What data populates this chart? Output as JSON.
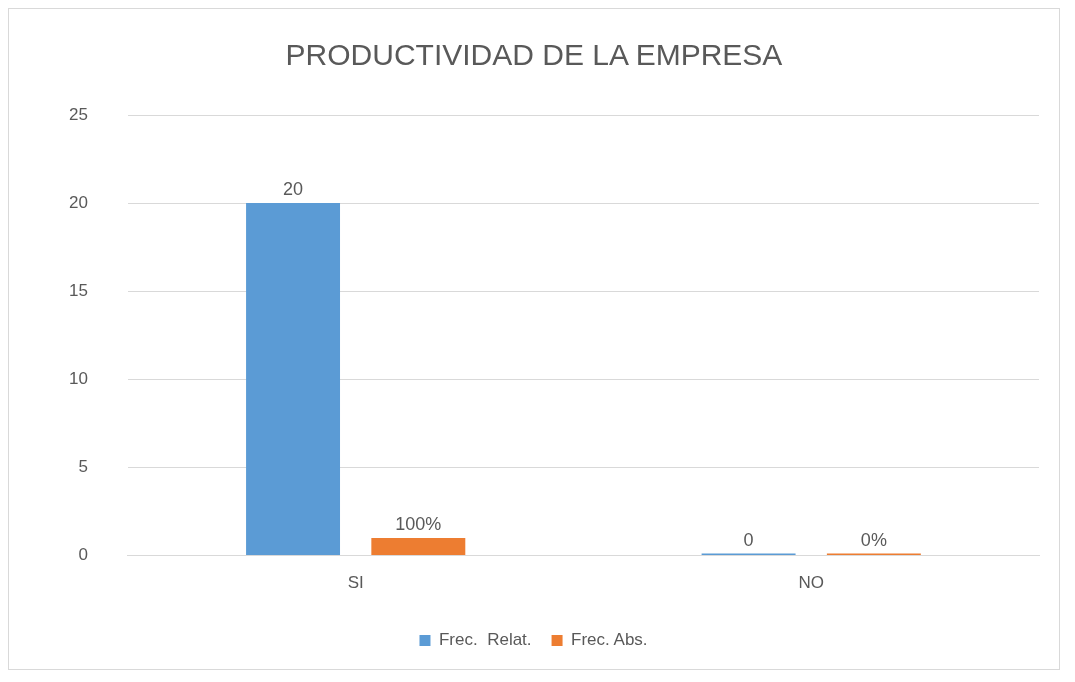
{
  "chart_data": {
    "type": "bar",
    "title": "PRODUCTIVIDAD DE LA EMPRESA",
    "categories": [
      "SI",
      "NO"
    ],
    "series": [
      {
        "name": "Frec.  Relat.",
        "color": "#5b9bd5",
        "values": [
          20,
          0
        ],
        "value_labels": [
          "20",
          "0"
        ]
      },
      {
        "name": "Frec. Abs.",
        "color": "#ed7d31",
        "values": [
          1,
          0
        ],
        "value_labels": [
          "100%",
          "0%"
        ]
      }
    ],
    "ylim": [
      0,
      25
    ],
    "yticks": [
      0,
      5,
      10,
      15,
      20,
      25
    ],
    "grid": "y",
    "legend": "bottom"
  }
}
